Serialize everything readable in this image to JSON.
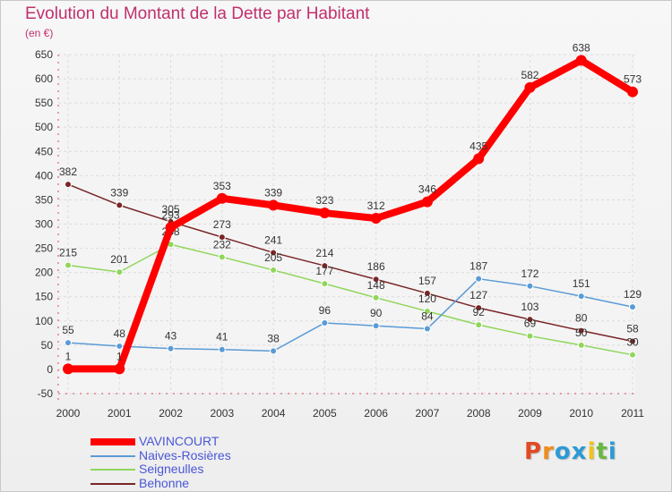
{
  "title": "Evolution du Montant de la Dette par Habitant",
  "subtitle": "(en €)",
  "logo": {
    "text": "Proxiti",
    "colors": [
      "#e04b24",
      "#f08c1c",
      "#2c9ad6",
      "#2c9ad6",
      "#f0c419",
      "#6ab840",
      "#2c9ad6"
    ]
  },
  "chart_data": {
    "type": "line",
    "x": [
      "2000",
      "2001",
      "2002",
      "2003",
      "2004",
      "2005",
      "2006",
      "2007",
      "2008",
      "2009",
      "2010",
      "2011"
    ],
    "yticks": [
      -50,
      0,
      50,
      100,
      150,
      200,
      250,
      300,
      350,
      400,
      450,
      500,
      550,
      600,
      650
    ],
    "ylim": [
      -50,
      650
    ],
    "grid": true,
    "legend_position": "bottom-left",
    "series": [
      {
        "name": "VAVINCOURT",
        "color": "#ff0000",
        "highlight": true,
        "values": [
          1,
          1,
          293,
          353,
          339,
          323,
          312,
          346,
          435,
          582,
          638,
          573
        ]
      },
      {
        "name": "Naives-Rosières",
        "color": "#5a9bd5",
        "values": [
          55,
          48,
          43,
          41,
          38,
          96,
          90,
          84,
          187,
          172,
          151,
          129
        ]
      },
      {
        "name": "Seigneulles",
        "color": "#8fd65a",
        "values": [
          215,
          201,
          258,
          232,
          205,
          177,
          148,
          120,
          92,
          69,
          50,
          30
        ]
      },
      {
        "name": "Behonne",
        "color": "#7a2626",
        "values": [
          382,
          339,
          305,
          273,
          241,
          214,
          186,
          157,
          127,
          103,
          80,
          58
        ]
      }
    ]
  }
}
